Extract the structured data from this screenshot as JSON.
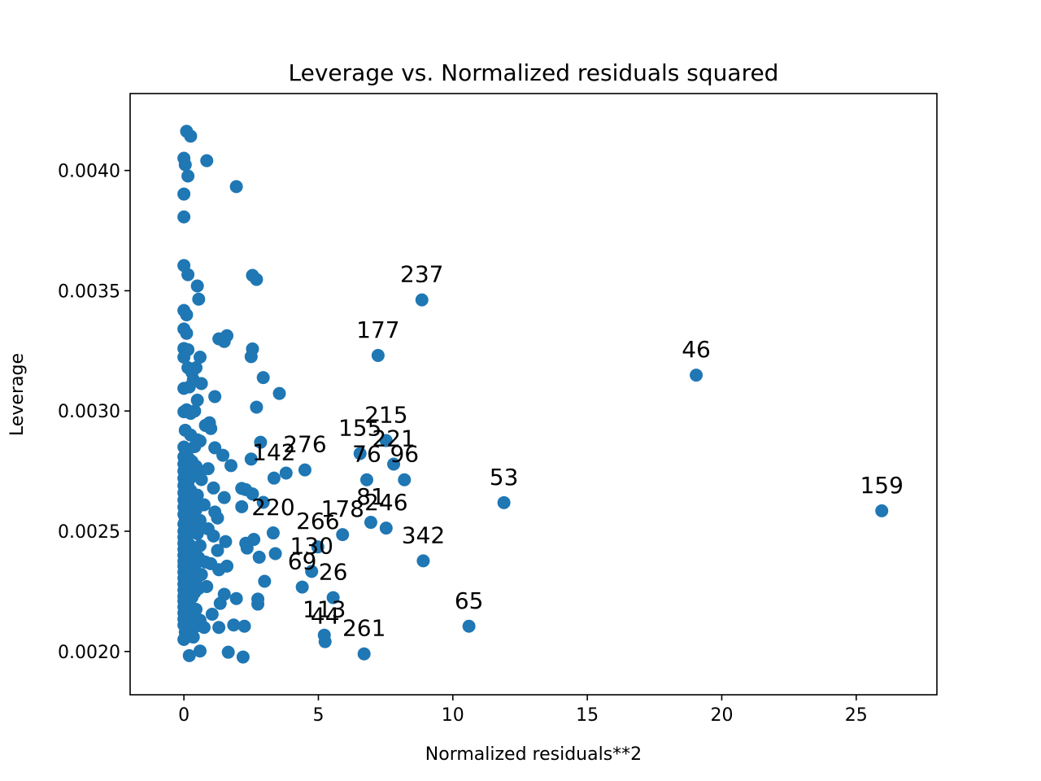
{
  "chart_data": {
    "type": "scatter",
    "title": "Leverage vs. Normalized residuals squared",
    "xlabel": "Normalized residuals**2",
    "ylabel": "Leverage",
    "xlim": [
      -2,
      28
    ],
    "ylim": [
      0.00182,
      0.00432
    ],
    "xticks": [
      0,
      5,
      10,
      15,
      20,
      25
    ],
    "xtick_labels": [
      "0",
      "5",
      "10",
      "15",
      "20",
      "25"
    ],
    "yticks": [
      0.002,
      0.0025,
      0.003,
      0.0035,
      0.004
    ],
    "ytick_labels": [
      "0.0020",
      "0.0025",
      "0.0030",
      "0.0035",
      "0.0040"
    ],
    "grid": false,
    "legend": "none",
    "marker_color": "#1f77b4",
    "labeled_points": [
      {
        "label": "237",
        "x": 8.85,
        "y": 0.003462
      },
      {
        "label": "177",
        "x": 7.22,
        "y": 0.003231
      },
      {
        "label": "46",
        "x": 19.05,
        "y": 0.003149
      },
      {
        "label": "215",
        "x": 7.52,
        "y": 0.002877
      },
      {
        "label": "155",
        "x": 6.55,
        "y": 0.002823
      },
      {
        "label": "221",
        "x": 7.8,
        "y": 0.002779
      },
      {
        "label": "76",
        "x": 6.8,
        "y": 0.002714
      },
      {
        "label": "96",
        "x": 8.2,
        "y": 0.002714
      },
      {
        "label": "142",
        "x": 3.35,
        "y": 0.002721
      },
      {
        "label": "276",
        "x": 4.5,
        "y": 0.002755
      },
      {
        "label": "53",
        "x": 11.9,
        "y": 0.002619
      },
      {
        "label": "159",
        "x": 25.95,
        "y": 0.002585
      },
      {
        "label": "81",
        "x": 6.95,
        "y": 0.002537
      },
      {
        "label": "246",
        "x": 7.52,
        "y": 0.002513
      },
      {
        "label": "178",
        "x": 5.9,
        "y": 0.002486
      },
      {
        "label": "220",
        "x": 3.32,
        "y": 0.002493
      },
      {
        "label": "342",
        "x": 8.9,
        "y": 0.002377
      },
      {
        "label": "266",
        "x": 4.98,
        "y": 0.002435
      },
      {
        "label": "130",
        "x": 4.75,
        "y": 0.002333
      },
      {
        "label": "69",
        "x": 4.4,
        "y": 0.002268
      },
      {
        "label": "26",
        "x": 5.55,
        "y": 0.002224
      },
      {
        "label": "113",
        "x": 5.22,
        "y": 0.002068
      },
      {
        "label": "44",
        "x": 5.25,
        "y": 0.002041
      },
      {
        "label": "261",
        "x": 6.7,
        "y": 0.00199
      },
      {
        "label": "65",
        "x": 10.6,
        "y": 0.002105
      }
    ],
    "points": [
      [
        0.1,
        0.004163
      ],
      [
        0.25,
        0.004143
      ],
      [
        0.0,
        0.004051
      ],
      [
        0.05,
        0.004024
      ],
      [
        0.85,
        0.004041
      ],
      [
        0.15,
        0.003977
      ],
      [
        0.0,
        0.003902
      ],
      [
        1.95,
        0.003933
      ],
      [
        0.0,
        0.003807
      ],
      [
        0.0,
        0.003605
      ],
      [
        0.15,
        0.003567
      ],
      [
        0.5,
        0.00352
      ],
      [
        0.55,
        0.003465
      ],
      [
        2.55,
        0.003564
      ],
      [
        2.7,
        0.003547
      ],
      [
        0.0,
        0.003418
      ],
      [
        0.1,
        0.0034
      ],
      [
        0.0,
        0.003341
      ],
      [
        0.1,
        0.003323
      ],
      [
        1.3,
        0.0033
      ],
      [
        1.6,
        0.003313
      ],
      [
        1.5,
        0.003289
      ],
      [
        2.55,
        0.003258
      ],
      [
        2.5,
        0.003226
      ],
      [
        0.0,
        0.00326
      ],
      [
        0.15,
        0.003255
      ],
      [
        0.0,
        0.003224
      ],
      [
        0.6,
        0.003224
      ],
      [
        0.15,
        0.00318
      ],
      [
        0.3,
        0.00316
      ],
      [
        0.45,
        0.00318
      ],
      [
        2.95,
        0.003139
      ],
      [
        0.0,
        0.003094
      ],
      [
        0.2,
        0.0031
      ],
      [
        0.35,
        0.00313
      ],
      [
        0.65,
        0.003114
      ],
      [
        1.15,
        0.00306
      ],
      [
        3.55,
        0.003073
      ],
      [
        0.5,
        0.003045
      ],
      [
        2.7,
        0.003016
      ],
      [
        0.0,
        0.002997
      ],
      [
        0.1,
        0.003005
      ],
      [
        0.25,
        0.00299
      ],
      [
        0.4,
        0.003
      ],
      [
        0.95,
        0.002951
      ],
      [
        0.8,
        0.00294
      ],
      [
        0.05,
        0.00292
      ],
      [
        0.25,
        0.0029
      ],
      [
        1.0,
        0.002927
      ],
      [
        0.5,
        0.00288
      ],
      [
        0.6,
        0.002875
      ],
      [
        2.85,
        0.00287
      ],
      [
        0.0,
        0.00285
      ],
      [
        0.15,
        0.00284
      ],
      [
        0.4,
        0.002852
      ],
      [
        1.15,
        0.002847
      ],
      [
        1.45,
        0.002816
      ],
      [
        0.0,
        0.00281
      ],
      [
        0.2,
        0.0028
      ],
      [
        2.5,
        0.0028
      ],
      [
        0.0,
        0.00278
      ],
      [
        0.3,
        0.00279
      ],
      [
        1.75,
        0.002773
      ],
      [
        0.45,
        0.00277
      ],
      [
        0.0,
        0.00275
      ],
      [
        0.1,
        0.002745
      ],
      [
        0.25,
        0.00276
      ],
      [
        0.55,
        0.002752
      ],
      [
        0.9,
        0.00276
      ],
      [
        3.8,
        0.002742
      ],
      [
        0.0,
        0.00272
      ],
      [
        0.2,
        0.002718
      ],
      [
        0.35,
        0.00273
      ],
      [
        0.65,
        0.002715
      ],
      [
        0.0,
        0.00269
      ],
      [
        0.15,
        0.0027
      ],
      [
        1.1,
        0.00268
      ],
      [
        2.15,
        0.002678
      ],
      [
        2.3,
        0.002673
      ],
      [
        0.0,
        0.00266
      ],
      [
        0.25,
        0.00267
      ],
      [
        0.5,
        0.00265
      ],
      [
        2.55,
        0.002655
      ],
      [
        1.5,
        0.00264
      ],
      [
        0.0,
        0.00263
      ],
      [
        0.1,
        0.002625
      ],
      [
        0.35,
        0.00262
      ],
      [
        2.95,
        0.00262
      ],
      [
        0.75,
        0.00261
      ],
      [
        2.15,
        0.002602
      ],
      [
        0.0,
        0.0026
      ],
      [
        0.2,
        0.002595
      ],
      [
        0.45,
        0.00259
      ],
      [
        1.15,
        0.00258
      ],
      [
        0.0,
        0.00257
      ],
      [
        0.05,
        0.00255
      ],
      [
        0.3,
        0.00256
      ],
      [
        0.6,
        0.002545
      ],
      [
        1.25,
        0.002555
      ],
      [
        0.0,
        0.00253
      ],
      [
        0.15,
        0.00252
      ],
      [
        0.45,
        0.002525
      ],
      [
        0.9,
        0.00251
      ],
      [
        0.0,
        0.0025
      ],
      [
        0.25,
        0.002495
      ],
      [
        0.5,
        0.00249
      ],
      [
        1.1,
        0.00248
      ],
      [
        0.0,
        0.002475
      ],
      [
        0.1,
        0.002465
      ],
      [
        2.6,
        0.002466
      ],
      [
        1.55,
        0.002457
      ],
      [
        0.0,
        0.00245
      ],
      [
        0.2,
        0.002445
      ],
      [
        0.6,
        0.00244
      ],
      [
        2.3,
        0.00245
      ],
      [
        2.35,
        0.00243
      ],
      [
        0.0,
        0.002425
      ],
      [
        0.3,
        0.00242
      ],
      [
        1.25,
        0.00242
      ],
      [
        3.4,
        0.002407
      ],
      [
        0.0,
        0.0024
      ],
      [
        0.15,
        0.002395
      ],
      [
        0.55,
        0.00239
      ],
      [
        2.8,
        0.002392
      ],
      [
        0.0,
        0.002375
      ],
      [
        0.25,
        0.00237
      ],
      [
        0.8,
        0.002372
      ],
      [
        1.0,
        0.002365
      ],
      [
        0.0,
        0.002355
      ],
      [
        0.15,
        0.00235
      ],
      [
        0.4,
        0.002348
      ],
      [
        1.6,
        0.002355
      ],
      [
        1.3,
        0.00234
      ],
      [
        0.0,
        0.00233
      ],
      [
        0.3,
        0.002325
      ],
      [
        0.65,
        0.00232
      ],
      [
        0.0,
        0.002305
      ],
      [
        0.1,
        0.0023
      ],
      [
        0.45,
        0.002298
      ],
      [
        3.0,
        0.002292
      ],
      [
        0.0,
        0.00228
      ],
      [
        0.25,
        0.002275
      ],
      [
        0.85,
        0.00227
      ],
      [
        0.55,
        0.002262
      ],
      [
        0.0,
        0.002255
      ],
      [
        0.15,
        0.00225
      ],
      [
        0.4,
        0.002245
      ],
      [
        1.5,
        0.002238
      ],
      [
        0.0,
        0.00223
      ],
      [
        0.3,
        0.002225
      ],
      [
        1.95,
        0.00222
      ],
      [
        2.75,
        0.002218
      ],
      [
        0.0,
        0.00221
      ],
      [
        0.2,
        0.0022
      ],
      [
        1.35,
        0.0022
      ],
      [
        2.75,
        0.002197
      ],
      [
        0.0,
        0.002185
      ],
      [
        0.1,
        0.00218
      ],
      [
        0.45,
        0.002175
      ],
      [
        0.0,
        0.00216
      ],
      [
        1.05,
        0.002155
      ],
      [
        0.3,
        0.00215
      ],
      [
        0.0,
        0.002135
      ],
      [
        0.6,
        0.00213
      ],
      [
        0.15,
        0.00212
      ],
      [
        1.85,
        0.00211
      ],
      [
        2.25,
        0.002105
      ],
      [
        0.0,
        0.00211
      ],
      [
        0.45,
        0.002105
      ],
      [
        1.3,
        0.0021
      ],
      [
        0.75,
        0.0021
      ],
      [
        0.05,
        0.00208
      ],
      [
        0.2,
        0.002075
      ],
      [
        0.0,
        0.00205
      ],
      [
        0.35,
        0.00206
      ],
      [
        0.6,
        0.002002
      ],
      [
        1.65,
        0.001997
      ],
      [
        0.2,
        0.001983
      ],
      [
        2.2,
        0.001977
      ]
    ]
  }
}
